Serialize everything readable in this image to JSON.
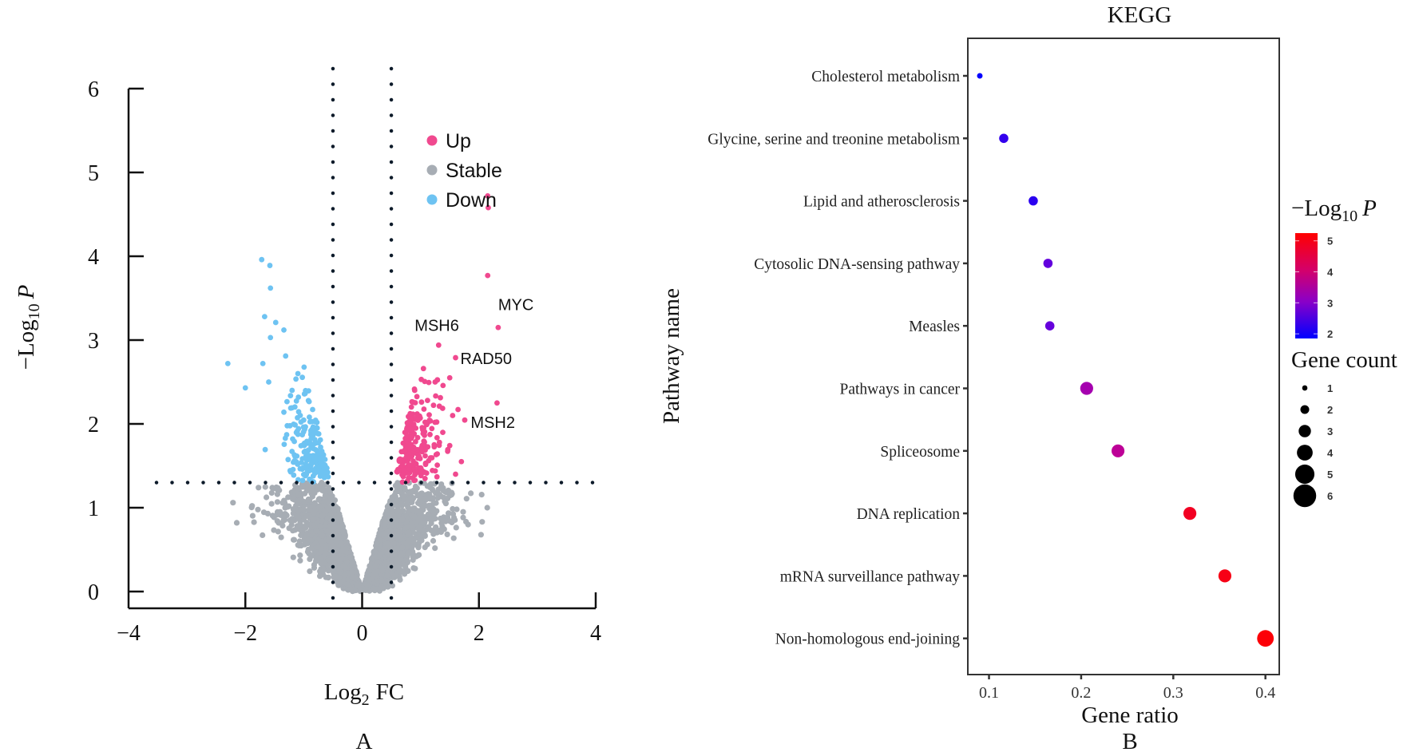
{
  "chart_data": [
    {
      "panel": "A",
      "type": "scatter",
      "subtype": "volcano",
      "title": "",
      "xlabel": "Log2 FC",
      "ylabel": "-Log10 P",
      "xlim": [
        -4,
        4
      ],
      "ylim": [
        0,
        6
      ],
      "xticks": [
        "-4",
        "-2",
        "0",
        "2",
        "4"
      ],
      "xtick_values": [
        -4,
        -2,
        0,
        2,
        4
      ],
      "yticks": [
        "0",
        "1",
        "2",
        "3",
        "4",
        "5",
        "6"
      ],
      "ytick_values": [
        0,
        1,
        2,
        3,
        4,
        5,
        6
      ],
      "thresholds": {
        "log2fc": [
          -0.5,
          0.5
        ],
        "neg_log10_p": 1.3
      },
      "legend": {
        "position": "top-right",
        "entries": [
          {
            "name": "Up",
            "color": "#f0498f"
          },
          {
            "name": "Stable",
            "color": "#a7adb4"
          },
          {
            "name": "Down",
            "color": "#6ec3f2"
          }
        ]
      },
      "labeled_genes": [
        {
          "name": "MYC",
          "x": 2.33,
          "y": 3.15
        },
        {
          "name": "MSH6",
          "x": 1.31,
          "y": 2.94
        },
        {
          "name": "RAD50",
          "x": 1.6,
          "y": 2.79
        },
        {
          "name": "MSH2",
          "x": 2.31,
          "y": 2.25
        }
      ],
      "highlight_points": {
        "Up": [
          [
            2.15,
            4.72
          ],
          [
            2.16,
            4.58
          ],
          [
            2.15,
            3.77
          ],
          [
            2.33,
            3.15
          ],
          [
            1.31,
            2.94
          ],
          [
            1.6,
            2.79
          ],
          [
            2.31,
            2.25
          ],
          [
            1.05,
            2.66
          ],
          [
            1.5,
            2.55
          ],
          [
            1.55,
            2.1
          ],
          [
            1.7,
            1.55
          ],
          [
            1.6,
            1.4
          ],
          [
            1.25,
            2.5
          ],
          [
            0.9,
            2.4
          ]
        ],
        "Down": [
          [
            -1.72,
            3.96
          ],
          [
            -1.58,
            3.89
          ],
          [
            -1.57,
            3.62
          ],
          [
            -1.67,
            3.28
          ],
          [
            -1.48,
            3.21
          ],
          [
            -1.34,
            3.12
          ],
          [
            -1.57,
            3.03
          ],
          [
            -1.31,
            2.81
          ],
          [
            -2.3,
            2.72
          ],
          [
            -1.7,
            2.72
          ],
          [
            -2.0,
            2.43
          ],
          [
            -1.1,
            2.6
          ],
          [
            -1.2,
            2.4
          ],
          [
            -1.6,
            2.5
          ]
        ]
      },
      "annotation": "A"
    },
    {
      "panel": "B",
      "type": "scatter",
      "subtype": "bubble",
      "title": "KEGG",
      "xlabel": "Gene ratio",
      "ylabel": "Pathway name",
      "xlim": [
        0.077,
        0.415
      ],
      "xticks": [
        "0.1",
        "0.2",
        "0.3",
        "0.4"
      ],
      "xtick_values": [
        0.1,
        0.2,
        0.3,
        0.4
      ],
      "categories": [
        "Cholesterol metabolism",
        "Glycine, serine and treonine metabolism",
        "Lipid and atherosclerosis",
        "Cytosolic DNA-sensing pathway",
        "Measles",
        "Pathways in cancer",
        "Spliceosome",
        "DNA replication",
        "mRNA surveillance pathway",
        "Non-homologous end-joining"
      ],
      "gene_ratio": [
        0.09,
        0.116,
        0.148,
        0.164,
        0.166,
        0.206,
        0.24,
        0.318,
        0.356,
        0.4
      ],
      "neg_log10_p": [
        1.9,
        2.45,
        2.35,
        3.0,
        3.05,
        3.8,
        4.1,
        5.0,
        5.1,
        5.2
      ],
      "gene_count": [
        1,
        2,
        2,
        2,
        2,
        3,
        3,
        3,
        3,
        4
      ],
      "color_legend": {
        "title": "-Log10 P",
        "ticks": [
          "5",
          "4",
          "3",
          "2"
        ],
        "tick_values": [
          5,
          4,
          3,
          2
        ],
        "range": [
          1.85,
          5.25
        ],
        "low_color": "#0000ff",
        "high_color": "#ff0000"
      },
      "size_legend": {
        "title": "Gene count",
        "labels": [
          "1",
          "2",
          "3",
          "4",
          "5",
          "6"
        ],
        "values": [
          1,
          2,
          3,
          4,
          5,
          6
        ]
      },
      "annotation": "B"
    }
  ],
  "text": {
    "volcano_ylabel_main": "−Log",
    "volcano_ylabel_sub": "10",
    "volcano_ylabel_var": "P",
    "volcano_xlabel_main": "Log",
    "volcano_xlabel_sub": "2",
    "volcano_xlabel_rest": "FC",
    "panel_a": "A",
    "panel_b": "B",
    "kegg_title": "KEGG",
    "kegg_xlabel": "Gene ratio",
    "kegg_ylabel": "Pathway name",
    "color_legend_main": "−Log",
    "color_legend_sub": "10",
    "color_legend_var": "P",
    "size_legend_title": "Gene count"
  }
}
